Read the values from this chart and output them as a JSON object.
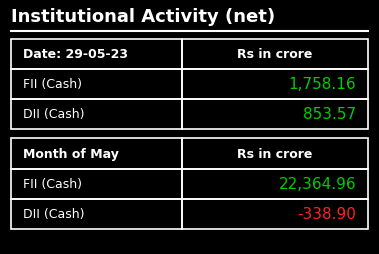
{
  "title": "Institutional Activity (net)",
  "background_color": "#000000",
  "title_color": "#ffffff",
  "table_border_color": "#ffffff",
  "header_text_color": "#ffffff",
  "label_text_color": "#ffffff",
  "cell_bg_color": "#000000",
  "section1_header_col1": "Date: 29-05-23",
  "section1_header_col2": "Rs in crore",
  "section1_rows": [
    {
      "label": "FII (Cash)",
      "value": "1,758.16",
      "color": "#00cc00"
    },
    {
      "label": "DII (Cash)",
      "value": "853.57",
      "color": "#00cc00"
    }
  ],
  "section2_header_col1": "Month of May",
  "section2_header_col2": "Rs in crore",
  "section2_rows": [
    {
      "label": "FII (Cash)",
      "value": "22,364.96",
      "color": "#00cc00"
    },
    {
      "label": "DII (Cash)",
      "value": "-338.90",
      "color": "#ff2222"
    }
  ]
}
